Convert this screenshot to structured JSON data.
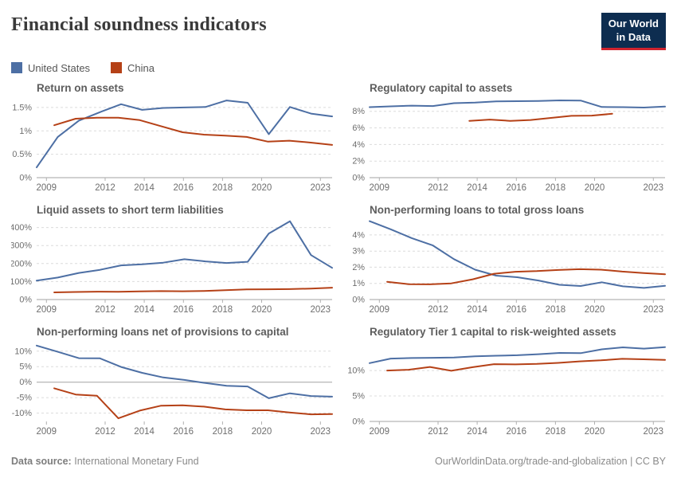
{
  "header": {
    "title": "Financial soundness indicators",
    "logo": {
      "line1": "Our World",
      "line2": "in Data",
      "bg_color": "#0d2d50",
      "accent_color": "#d0232e"
    }
  },
  "legend": {
    "items": [
      {
        "label": "United States",
        "color": "#4d6fa4"
      },
      {
        "label": "China",
        "color": "#b54117"
      }
    ]
  },
  "footer": {
    "source_label": "Data source:",
    "source_value": "International Monetary Fund",
    "attribution": "OurWorldinData.org/trade-and-globalization | CC BY"
  },
  "chart_data": {
    "type": "line",
    "xlim": [
      2008.5,
      2023.6
    ],
    "x_ticks": [
      {
        "v": 2009,
        "label": "2009"
      },
      {
        "v": 2012,
        "label": "2012"
      },
      {
        "v": 2014,
        "label": "2014"
      },
      {
        "v": 2016,
        "label": "2016"
      },
      {
        "v": 2018,
        "label": "2018"
      },
      {
        "v": 2020,
        "label": "2020"
      },
      {
        "v": 2023,
        "label": "2023"
      }
    ],
    "charts": [
      {
        "title": "Return on assets",
        "ylim": [
          0,
          1.72
        ],
        "y_ticks": [
          {
            "v": 0,
            "label": "0%"
          },
          {
            "v": 0.5,
            "label": "0.5%"
          },
          {
            "v": 1,
            "label": "1%"
          },
          {
            "v": 1.5,
            "label": "1.5%"
          }
        ],
        "series": [
          {
            "name": "United States",
            "x_start": 2008.5,
            "x_end": 2023.6,
            "values": [
              0.22,
              0.87,
              1.22,
              1.4,
              1.57,
              1.45,
              1.49,
              1.5,
              1.51,
              1.65,
              1.6,
              0.93,
              1.51,
              1.37,
              1.31
            ]
          },
          {
            "name": "China",
            "x_start": 2009.4,
            "x_end": 2023.6,
            "values": [
              1.12,
              1.26,
              1.28,
              1.28,
              1.23,
              1.1,
              0.97,
              0.92,
              0.9,
              0.87,
              0.77,
              0.79,
              0.75,
              0.7
            ]
          }
        ]
      },
      {
        "title": "Regulatory capital to assets",
        "ylim": [
          0,
          9.7
        ],
        "y_ticks": [
          {
            "v": 0,
            "label": "0%"
          },
          {
            "v": 2,
            "label": "2%"
          },
          {
            "v": 4,
            "label": "4%"
          },
          {
            "v": 6,
            "label": "6%"
          },
          {
            "v": 8,
            "label": "8%"
          }
        ],
        "series": [
          {
            "name": "United States",
            "x_start": 2008.5,
            "x_end": 2023.6,
            "values": [
              8.5,
              8.6,
              8.68,
              8.63,
              8.98,
              9.05,
              9.2,
              9.22,
              9.25,
              9.32,
              9.3,
              8.52,
              8.5,
              8.45,
              8.57
            ]
          },
          {
            "name": "China",
            "x_start": 2013.6,
            "x_end": 2020.9,
            "values": [
              6.85,
              7.0,
              6.85,
              6.95,
              7.2,
              7.45,
              7.48,
              7.7
            ]
          }
        ]
      },
      {
        "title": "Liquid assets to short term liabilities",
        "ylim": [
          0,
          447
        ],
        "y_ticks": [
          {
            "v": 0,
            "label": "0%"
          },
          {
            "v": 100,
            "label": "100%"
          },
          {
            "v": 200,
            "label": "200%"
          },
          {
            "v": 300,
            "label": "300%"
          },
          {
            "v": 400,
            "label": "400%"
          }
        ],
        "series": [
          {
            "name": "United States",
            "x_start": 2008.5,
            "x_end": 2023.6,
            "values": [
              105,
              122,
              148,
              165,
              190,
              196,
              205,
              224,
              212,
              203,
              210,
              367,
              435,
              247,
              176
            ]
          },
          {
            "name": "China",
            "x_start": 2009.4,
            "x_end": 2023.6,
            "values": [
              40,
              42,
              44,
              43,
              45,
              47,
              46,
              48,
              52,
              56,
              57,
              58,
              61,
              66
            ]
          }
        ]
      },
      {
        "title": "Non-performing loans to total gross loans",
        "ylim": [
          0,
          4.98
        ],
        "y_ticks": [
          {
            "v": 0,
            "label": "0%"
          },
          {
            "v": 1,
            "label": "1%"
          },
          {
            "v": 2,
            "label": "2%"
          },
          {
            "v": 3,
            "label": "3%"
          },
          {
            "v": 4,
            "label": "4%"
          }
        ],
        "series": [
          {
            "name": "United States",
            "x_start": 2008.5,
            "x_end": 2023.6,
            "values": [
              4.85,
              4.35,
              3.8,
              3.35,
              2.5,
              1.85,
              1.48,
              1.38,
              1.18,
              0.91,
              0.84,
              1.07,
              0.82,
              0.72,
              0.85
            ]
          },
          {
            "name": "China",
            "x_start": 2009.4,
            "x_end": 2023.6,
            "values": [
              1.1,
              0.95,
              0.94,
              1.0,
              1.25,
              1.6,
              1.72,
              1.76,
              1.83,
              1.88,
              1.85,
              1.73,
              1.64,
              1.57
            ]
          }
        ]
      },
      {
        "title": "Non-performing loans net of provisions to capital",
        "ylim": [
          -12.7,
          13.3
        ],
        "y_ticks": [
          {
            "v": -10,
            "label": "-10%"
          },
          {
            "v": -5,
            "label": "-5%"
          },
          {
            "v": 0,
            "label": "0%"
          },
          {
            "v": 5,
            "label": "5%"
          },
          {
            "v": 10,
            "label": "10%"
          }
        ],
        "series": [
          {
            "name": "United States",
            "x_start": 2008.5,
            "x_end": 2023.6,
            "values": [
              11.8,
              9.8,
              7.75,
              7.7,
              4.9,
              3.0,
              1.5,
              0.7,
              -0.3,
              -1.2,
              -1.4,
              -5.2,
              -3.6,
              -4.5,
              -4.7
            ]
          },
          {
            "name": "China",
            "x_start": 2009.4,
            "x_end": 2023.6,
            "values": [
              -2.0,
              -4.0,
              -4.4,
              -11.7,
              -9.2,
              -7.6,
              -7.5,
              -7.9,
              -8.8,
              -9.1,
              -9.1,
              -9.8,
              -10.4,
              -10.3
            ]
          }
        ]
      },
      {
        "title": "Regulatory Tier 1 capital to risk-weighted assets",
        "ylim": [
          0,
          15.8
        ],
        "y_ticks": [
          {
            "v": 0,
            "label": "0%"
          },
          {
            "v": 5,
            "label": "5%"
          },
          {
            "v": 10,
            "label": "10%"
          }
        ],
        "series": [
          {
            "name": "United States",
            "x_start": 2008.5,
            "x_end": 2023.6,
            "values": [
              11.45,
              12.35,
              12.45,
              12.5,
              12.55,
              12.8,
              12.9,
              13.0,
              13.2,
              13.45,
              13.4,
              14.15,
              14.55,
              14.3,
              14.6
            ]
          },
          {
            "name": "China",
            "x_start": 2009.4,
            "x_end": 2023.6,
            "values": [
              10.0,
              10.15,
              10.7,
              9.95,
              10.65,
              11.25,
              11.2,
              11.3,
              11.5,
              11.8,
              12.0,
              12.3,
              12.2,
              12.1
            ]
          }
        ]
      }
    ]
  }
}
